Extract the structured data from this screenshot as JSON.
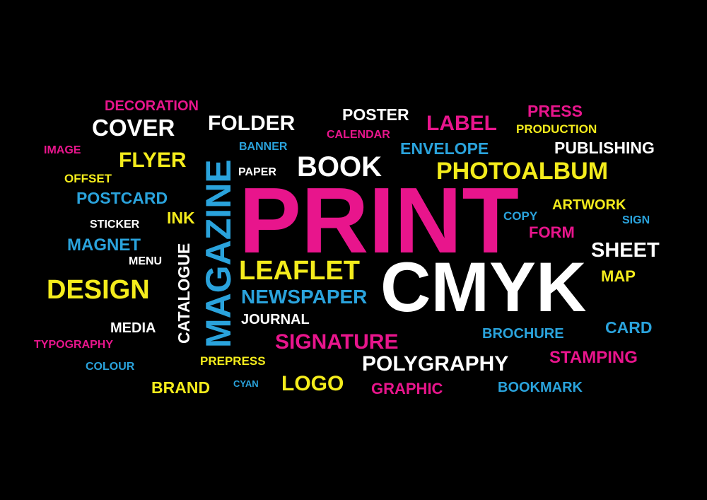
{
  "colors": {
    "background": "#000000",
    "magenta": "#e8158c",
    "cyan": "#2aa3dc",
    "yellow": "#f4ec1c",
    "white": "#ffffff"
  },
  "words": {
    "decoration": "DECORATION",
    "cover": "COVER",
    "folder": "FOLDER",
    "poster": "POSTER",
    "calendar": "CALENDAR",
    "label": "LABEL",
    "press": "PRESS",
    "production": "PRODUCTION",
    "image": "IMAGE",
    "flyer": "FLYER",
    "magazine": "MAGAZINE",
    "banner": "BANNER",
    "envelope": "ENVELOPE",
    "publishing": "PUBLISHING",
    "offset": "OFFSET",
    "paper": "PAPER",
    "book": "BOOK",
    "photoalbum": "PHOTOALBUM",
    "postcard": "POSTCARD",
    "print": "PRINT",
    "artwork": "ARTWORK",
    "ink": "INK",
    "copy": "COPY",
    "sign": "SIGN",
    "sticker": "STICKER",
    "form": "FORM",
    "magnet": "MAGNET",
    "sheet": "SHEET",
    "menu": "MENU",
    "catalogue": "CATALOGUE",
    "leaflet": "LEAFLET",
    "cmyk": "CMYK",
    "map": "MAP",
    "design": "DESIGN",
    "newspaper": "NEWSPAPER",
    "journal": "JOURNAL",
    "media": "MEDIA",
    "brochure": "BROCHURE",
    "card": "CARD",
    "signature": "SIGNATURE",
    "typography": "TYPOGRAPHY",
    "prepress": "PREPRESS",
    "polygraphy": "POLYGRAPHY",
    "stamping": "STAMPING",
    "colour": "COLOUR",
    "brand": "BRAND",
    "cyan": "CYAN",
    "logo": "LOGO",
    "graphic": "GRAPHIC",
    "bookmark": "BOOKMARK"
  }
}
